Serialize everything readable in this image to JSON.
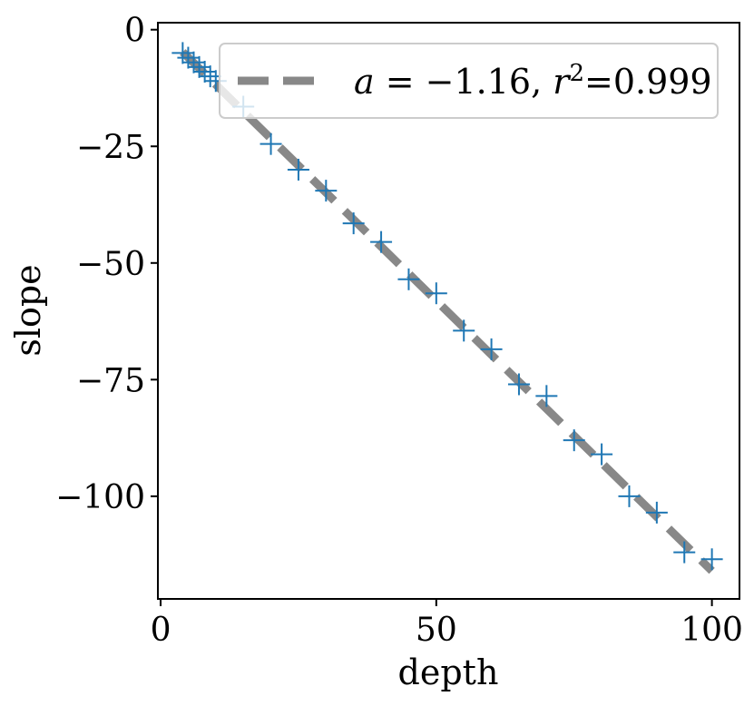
{
  "chart_data": {
    "type": "scatter",
    "xlabel": "depth",
    "ylabel": "slope",
    "xlim": [
      -0.5,
      105
    ],
    "ylim": [
      -122,
      1.5
    ],
    "x_ticks": [
      0,
      50,
      100
    ],
    "y_ticks": [
      0,
      -25,
      -50,
      -75,
      -100
    ],
    "x_tick_labels": [
      "0",
      "50",
      "100"
    ],
    "y_tick_labels": [
      "0",
      "−25",
      "−50",
      "−75",
      "−100"
    ],
    "grid": false,
    "legend_position": "top-right",
    "series": [
      {
        "kind": "markers",
        "marker": "+",
        "color": "#1f77b4",
        "x": [
          4,
          5,
          6,
          7,
          8,
          9,
          10,
          15,
          20,
          25,
          30,
          35,
          40,
          45,
          50,
          55,
          60,
          65,
          70,
          75,
          80,
          85,
          90,
          95,
          100
        ],
        "y": [
          -5,
          -6,
          -7,
          -8,
          -9,
          -10,
          -11,
          -16.5,
          -24.5,
          -30,
          -34.5,
          -41.5,
          -45.5,
          -53.5,
          -56.5,
          -64.5,
          -68.5,
          -76,
          -78.5,
          -88,
          -91,
          -100,
          -103.5,
          -112,
          -113.5
        ]
      },
      {
        "kind": "fit-line",
        "color": "#888888",
        "dash": "dashed",
        "x": [
          4,
          100
        ],
        "y": [
          -4.8,
          -116
        ]
      }
    ],
    "legend": {
      "a_symbol": "a",
      "a_text": " = −1.16, ",
      "r_symbol": "r",
      "r_exponent": "2",
      "r_text": "=0.999"
    }
  }
}
